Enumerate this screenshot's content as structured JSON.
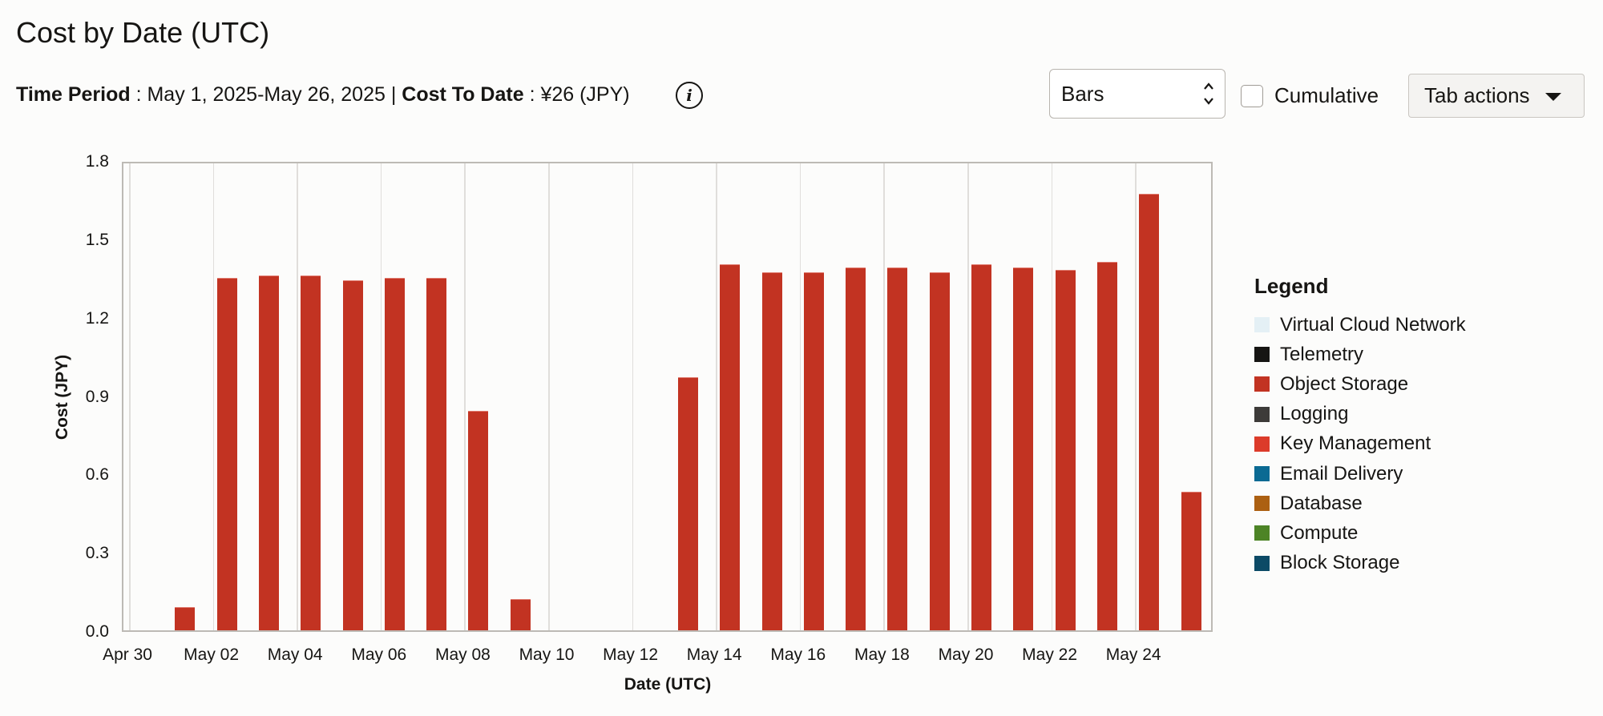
{
  "header": {
    "title": "Cost by Date (UTC)",
    "time_period_label": "Time Period",
    "time_period_value": ": May 1, 2025-May 26, 2025 |",
    "cost_to_date_label": "Cost To Date",
    "cost_to_date_value": ": ¥26 (JPY)",
    "info_icon": "i"
  },
  "controls": {
    "chart_type_select": {
      "value": "Bars"
    },
    "cumulative": {
      "label": "Cumulative",
      "checked": false
    },
    "tab_actions": {
      "label": "Tab actions"
    }
  },
  "legend": {
    "title": "Legend",
    "items": [
      {
        "label": "Virtual Cloud Network",
        "color": "#e4f0f5"
      },
      {
        "label": "Telemetry",
        "color": "#161513"
      },
      {
        "label": "Object Storage",
        "color": "#c23322"
      },
      {
        "label": "Logging",
        "color": "#3d3b39"
      },
      {
        "label": "Key Management",
        "color": "#dc3b2a"
      },
      {
        "label": "Email Delivery",
        "color": "#0b6a93"
      },
      {
        "label": "Database",
        "color": "#ac6012"
      },
      {
        "label": "Compute",
        "color": "#4d8426"
      },
      {
        "label": "Block Storage",
        "color": "#0c4a66"
      }
    ]
  },
  "chart_data": {
    "type": "bar",
    "title": "Cost by Date (UTC)",
    "xlabel": "Date (UTC)",
    "ylabel": "Cost (JPY)",
    "ylim": [
      0,
      1.8
    ],
    "yticks": [
      "0.0",
      "0.3",
      "0.6",
      "0.9",
      "1.2",
      "1.5",
      "1.8"
    ],
    "xticks": [
      "Apr 30",
      "May 02",
      "May 04",
      "May 06",
      "May 08",
      "May 10",
      "May 12",
      "May 14",
      "May 16",
      "May 18",
      "May 20",
      "May 22",
      "May 24"
    ],
    "grid": "vertical",
    "legend_position": "right",
    "categories": [
      "May 01",
      "May 02",
      "May 03",
      "May 04",
      "May 05",
      "May 06",
      "May 07",
      "May 08",
      "May 09",
      "May 10",
      "May 11",
      "May 12",
      "May 13",
      "May 14",
      "May 15",
      "May 16",
      "May 17",
      "May 18",
      "May 19",
      "May 20",
      "May 21",
      "May 22",
      "May 23",
      "May 24",
      "May 25"
    ],
    "series": [
      {
        "name": "Object Storage",
        "color": "#c23322",
        "values": [
          0.09,
          1.35,
          1.36,
          1.36,
          1.34,
          1.35,
          1.35,
          0.84,
          0.12,
          0,
          0,
          0,
          0.97,
          1.4,
          1.37,
          1.37,
          1.39,
          1.39,
          1.37,
          1.4,
          1.39,
          1.38,
          1.41,
          1.67,
          0.53
        ]
      }
    ]
  }
}
